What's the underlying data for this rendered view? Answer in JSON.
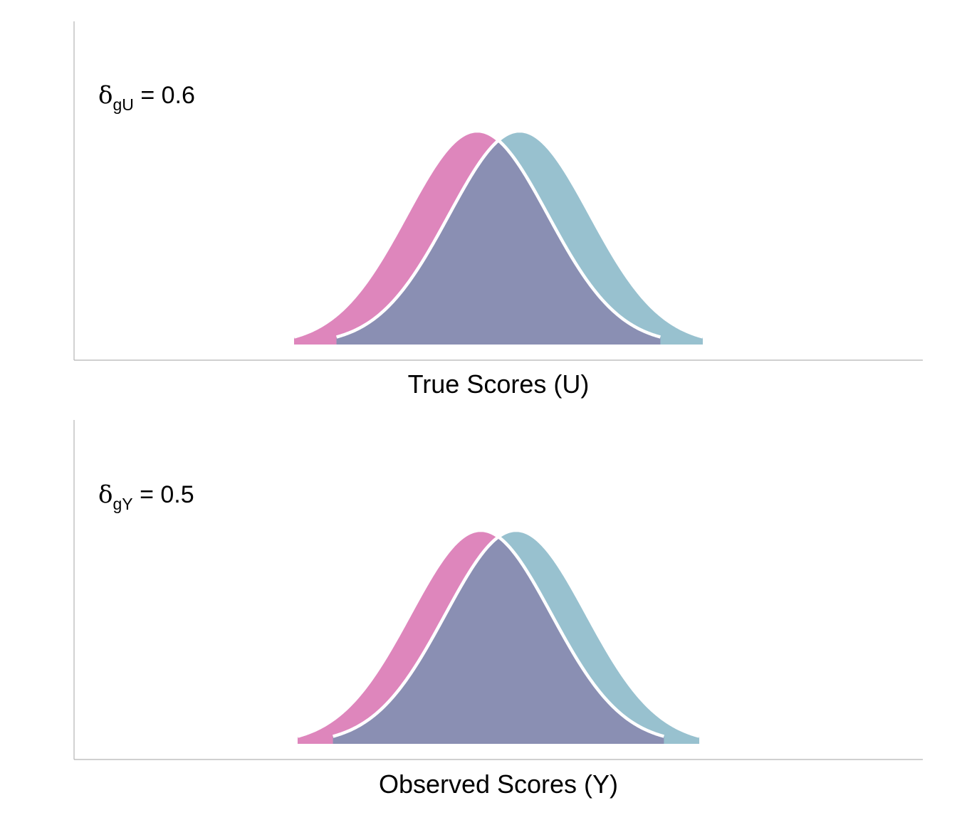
{
  "colors": {
    "group_a": "#DE86BC",
    "group_b": "#98C1CF",
    "overlap": "#8A8FB3",
    "outline": "#FFFFFF",
    "axis": "#B3B3B3",
    "background": "#FFFFFF"
  },
  "chart_data": [
    {
      "type": "area",
      "xlabel": "True Scores (U)",
      "ylabel": "",
      "annotation": {
        "symbol": "δ",
        "subscript": "gU",
        "text": " = 0.6"
      },
      "grid": false,
      "legend": "none",
      "series": [
        {
          "distribution": "normal",
          "mean": -0.3,
          "sd": 1.0
        },
        {
          "distribution": "normal",
          "mean": 0.3,
          "sd": 1.0
        }
      ],
      "xlim": [
        -6,
        6
      ]
    },
    {
      "type": "area",
      "xlabel": "Observed Scores (Y)",
      "ylabel": "",
      "annotation": {
        "symbol": "δ",
        "subscript": "gY",
        "text": " = 0.5"
      },
      "grid": false,
      "legend": "none",
      "series": [
        {
          "distribution": "normal",
          "mean": -0.3,
          "sd": 1.2
        },
        {
          "distribution": "normal",
          "mean": 0.3,
          "sd": 1.2
        }
      ],
      "xlim": [
        -7.2,
        7.2
      ]
    }
  ]
}
